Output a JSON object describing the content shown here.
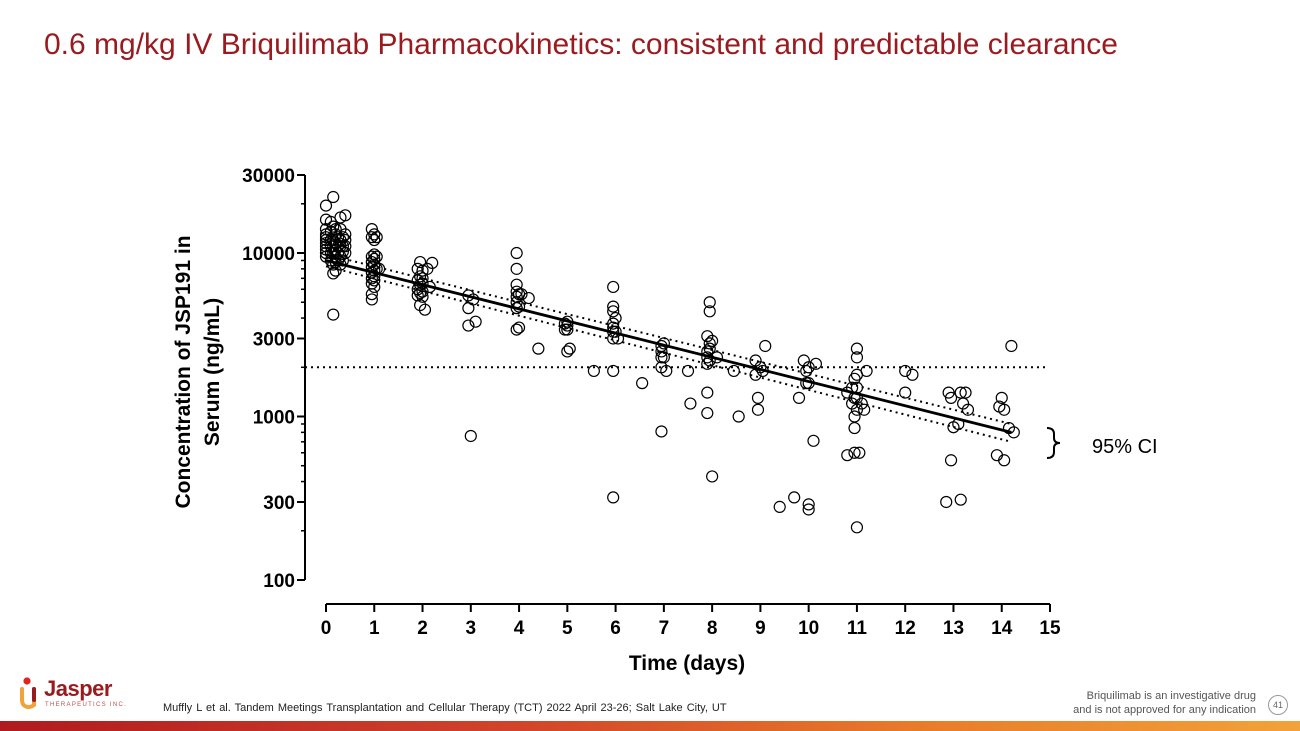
{
  "title": "0.6 mg/kg IV Briquilimab Pharmacokinetics: consistent and predictable clearance",
  "footer": {
    "reference": "Muffly L et al. Tandem Meetings Transplantation and Cellular Therapy (TCT) 2022 April 23-26; Salt Lake City, UT",
    "disclaimer_line1": "Briquilimab  is an investigative drug",
    "disclaimer_line2": "and is not approved for any indication",
    "page_number": "41"
  },
  "logo": {
    "name": "Jasper",
    "subtitle": "THERAPEUTICS INC."
  },
  "colors": {
    "title": "#9a1b1f",
    "ink": "#000000"
  },
  "chart_data": {
    "type": "scatter",
    "title": "",
    "xlabel": "Time (days)",
    "ylabel_line1": "Concentration of JSP191 in",
    "ylabel_line2": "Serum (ng/mL)",
    "xlim": [
      0,
      15
    ],
    "ylim": [
      100,
      30000
    ],
    "yscale": "log",
    "x_ticks": [
      0,
      1,
      2,
      3,
      4,
      5,
      6,
      7,
      8,
      9,
      10,
      11,
      12,
      13,
      14,
      15
    ],
    "x_tick_labels": [
      "0",
      "1",
      "2",
      "3",
      "4",
      "5",
      "6",
      "7",
      "8",
      "9",
      "10",
      "11",
      "12",
      "13",
      "14",
      "15"
    ],
    "y_ticks": [
      100,
      300,
      1000,
      3000,
      10000,
      30000
    ],
    "y_tick_labels": [
      "100",
      "300",
      "1000",
      "3000",
      "10000",
      "30000"
    ],
    "reference_line": {
      "y": 2000,
      "style": "dotted"
    },
    "fit": {
      "x": [
        0,
        14.2
      ],
      "y": [
        9000,
        800
      ]
    },
    "ci_upper": {
      "x": [
        0,
        14.2
      ],
      "y": [
        9800,
        900
      ]
    },
    "ci_lower": {
      "x": [
        0,
        14.2
      ],
      "y": [
        8300,
        700
      ]
    },
    "annotation": "95% CI",
    "points": [
      [
        0.0,
        19500
      ],
      [
        0.0,
        16000
      ],
      [
        0.0,
        14000
      ],
      [
        0.0,
        13000
      ],
      [
        0.0,
        12500
      ],
      [
        0.0,
        12000
      ],
      [
        0.0,
        11500
      ],
      [
        0.0,
        11000
      ],
      [
        0.0,
        10500
      ],
      [
        0.0,
        10000
      ],
      [
        0.0,
        9500
      ],
      [
        0.1,
        15500
      ],
      [
        0.1,
        13500
      ],
      [
        0.1,
        12000
      ],
      [
        0.1,
        11000
      ],
      [
        0.1,
        10000
      ],
      [
        0.1,
        9000
      ],
      [
        0.15,
        22000
      ],
      [
        0.15,
        14500
      ],
      [
        0.15,
        12000
      ],
      [
        0.15,
        11000
      ],
      [
        0.15,
        10000
      ],
      [
        0.15,
        8500
      ],
      [
        0.15,
        7500
      ],
      [
        0.15,
        4200
      ],
      [
        0.2,
        14000
      ],
      [
        0.2,
        13000
      ],
      [
        0.2,
        11500
      ],
      [
        0.2,
        10500
      ],
      [
        0.2,
        9500
      ],
      [
        0.2,
        8800
      ],
      [
        0.2,
        7800
      ],
      [
        0.25,
        12500
      ],
      [
        0.25,
        11000
      ],
      [
        0.25,
        10000
      ],
      [
        0.25,
        9000
      ],
      [
        0.3,
        16500
      ],
      [
        0.3,
        14000
      ],
      [
        0.3,
        12000
      ],
      [
        0.3,
        11000
      ],
      [
        0.3,
        9500
      ],
      [
        0.3,
        8500
      ],
      [
        0.35,
        12500
      ],
      [
        0.35,
        11000
      ],
      [
        0.35,
        10200
      ],
      [
        0.35,
        9000
      ],
      [
        0.4,
        17000
      ],
      [
        0.4,
        13000
      ],
      [
        0.4,
        12000
      ],
      [
        0.4,
        11000
      ],
      [
        0.4,
        10000
      ],
      [
        0.95,
        14000
      ],
      [
        0.95,
        12500
      ],
      [
        0.95,
        9500
      ],
      [
        0.95,
        8800
      ],
      [
        0.95,
        8200
      ],
      [
        0.95,
        7600
      ],
      [
        0.95,
        7000
      ],
      [
        0.95,
        6500
      ],
      [
        0.95,
        5600
      ],
      [
        0.95,
        5200
      ],
      [
        1.0,
        13000
      ],
      [
        1.0,
        12000
      ],
      [
        1.0,
        9800
      ],
      [
        1.0,
        9200
      ],
      [
        1.0,
        8500
      ],
      [
        1.0,
        7800
      ],
      [
        1.0,
        7200
      ],
      [
        1.0,
        6800
      ],
      [
        1.0,
        6200
      ],
      [
        1.05,
        12500
      ],
      [
        1.05,
        9500
      ],
      [
        1.05,
        8000
      ],
      [
        1.1,
        8000
      ],
      [
        1.9,
        8000
      ],
      [
        1.9,
        6800
      ],
      [
        1.9,
        6000
      ],
      [
        1.9,
        5500
      ],
      [
        1.95,
        8800
      ],
      [
        1.95,
        7200
      ],
      [
        1.95,
        6400
      ],
      [
        1.95,
        5700
      ],
      [
        1.95,
        4800
      ],
      [
        2.0,
        7800
      ],
      [
        2.0,
        7000
      ],
      [
        2.0,
        6500
      ],
      [
        2.0,
        5800
      ],
      [
        2.0,
        5400
      ],
      [
        2.05,
        4500
      ],
      [
        2.1,
        8000
      ],
      [
        2.15,
        6200
      ],
      [
        2.2,
        8700
      ],
      [
        2.95,
        5500
      ],
      [
        2.95,
        3600
      ],
      [
        2.95,
        4600
      ],
      [
        3.0,
        760
      ],
      [
        3.05,
        5200
      ],
      [
        3.1,
        3800
      ],
      [
        3.95,
        10000
      ],
      [
        3.95,
        8000
      ],
      [
        3.95,
        6400
      ],
      [
        3.95,
        5800
      ],
      [
        3.95,
        5400
      ],
      [
        3.95,
        5000
      ],
      [
        3.95,
        4600
      ],
      [
        3.95,
        3400
      ],
      [
        4.0,
        5600
      ],
      [
        4.0,
        4700
      ],
      [
        4.0,
        3500
      ],
      [
        4.05,
        5600
      ],
      [
        4.2,
        5300
      ],
      [
        4.4,
        2600
      ],
      [
        4.95,
        3700
      ],
      [
        4.95,
        3400
      ],
      [
        5.0,
        3800
      ],
      [
        5.0,
        3600
      ],
      [
        5.0,
        3400
      ],
      [
        5.0,
        2500
      ],
      [
        5.05,
        2600
      ],
      [
        5.55,
        1900
      ],
      [
        5.95,
        6200
      ],
      [
        5.95,
        4700
      ],
      [
        5.95,
        4400
      ],
      [
        5.95,
        3700
      ],
      [
        5.95,
        3500
      ],
      [
        5.95,
        3300
      ],
      [
        5.95,
        3000
      ],
      [
        5.95,
        1900
      ],
      [
        5.95,
        320
      ],
      [
        6.0,
        4000
      ],
      [
        6.0,
        3300
      ],
      [
        6.05,
        3000
      ],
      [
        6.55,
        1600
      ],
      [
        6.95,
        2700
      ],
      [
        6.95,
        2500
      ],
      [
        6.95,
        2300
      ],
      [
        6.95,
        2000
      ],
      [
        6.95,
        810
      ],
      [
        7.0,
        2800
      ],
      [
        7.0,
        2300
      ],
      [
        7.05,
        1900
      ],
      [
        7.5,
        1900
      ],
      [
        7.55,
        1200
      ],
      [
        7.9,
        3100
      ],
      [
        7.9,
        2500
      ],
      [
        7.9,
        2300
      ],
      [
        7.9,
        2100
      ],
      [
        7.9,
        1400
      ],
      [
        7.9,
        1050
      ],
      [
        7.95,
        5000
      ],
      [
        7.95,
        4400
      ],
      [
        7.95,
        2800
      ],
      [
        7.95,
        2600
      ],
      [
        7.95,
        2200
      ],
      [
        8.0,
        2900
      ],
      [
        8.0,
        430
      ],
      [
        8.1,
        2300
      ],
      [
        8.45,
        1900
      ],
      [
        8.55,
        1000
      ],
      [
        8.9,
        2200
      ],
      [
        8.9,
        1800
      ],
      [
        8.95,
        1300
      ],
      [
        8.95,
        1100
      ],
      [
        9.0,
        2000
      ],
      [
        9.05,
        1900
      ],
      [
        9.1,
        2700
      ],
      [
        9.4,
        280
      ],
      [
        9.7,
        320
      ],
      [
        9.8,
        1300
      ],
      [
        9.9,
        2200
      ],
      [
        9.95,
        1600
      ],
      [
        9.95,
        1900
      ],
      [
        10.0,
        2000
      ],
      [
        10.0,
        1600
      ],
      [
        10.0,
        290
      ],
      [
        10.0,
        270
      ],
      [
        10.1,
        710
      ],
      [
        10.15,
        2100
      ],
      [
        10.8,
        1400
      ],
      [
        10.8,
        580
      ],
      [
        10.9,
        1500
      ],
      [
        10.9,
        1200
      ],
      [
        10.95,
        1700
      ],
      [
        10.95,
        1300
      ],
      [
        10.95,
        850
      ],
      [
        10.95,
        1000
      ],
      [
        10.95,
        600
      ],
      [
        11.0,
        2600
      ],
      [
        11.0,
        2300
      ],
      [
        11.0,
        1800
      ],
      [
        11.0,
        1500
      ],
      [
        11.0,
        1300
      ],
      [
        11.0,
        1100
      ],
      [
        11.0,
        210
      ],
      [
        11.05,
        600
      ],
      [
        11.1,
        1200
      ],
      [
        11.15,
        1100
      ],
      [
        11.2,
        1900
      ],
      [
        12.0,
        1900
      ],
      [
        12.0,
        1400
      ],
      [
        12.15,
        1800
      ],
      [
        12.85,
        300
      ],
      [
        12.9,
        1400
      ],
      [
        12.95,
        540
      ],
      [
        12.95,
        1300
      ],
      [
        13.0,
        860
      ],
      [
        13.1,
        900
      ],
      [
        13.15,
        1400
      ],
      [
        13.15,
        310
      ],
      [
        13.2,
        1200
      ],
      [
        13.25,
        1400
      ],
      [
        13.3,
        1100
      ],
      [
        13.9,
        580
      ],
      [
        13.95,
        1150
      ],
      [
        14.0,
        1300
      ],
      [
        14.05,
        1100
      ],
      [
        14.05,
        540
      ],
      [
        14.15,
        850
      ],
      [
        14.2,
        2700
      ],
      [
        14.25,
        800
      ]
    ]
  }
}
